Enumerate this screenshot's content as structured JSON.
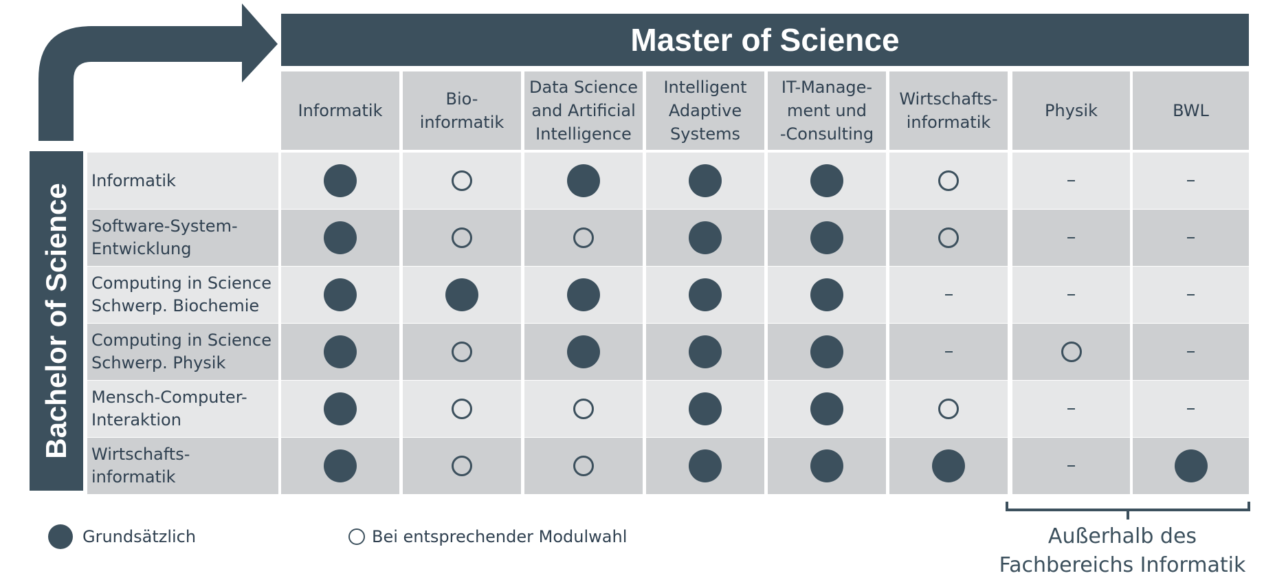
{
  "master_title": "Master of Science",
  "bachelor_title": "Bachelor of Science",
  "columns": [
    "Informatik",
    "Bio-\ninformatik",
    "Data Science\nand Artificial\nIntelligence",
    "Intelligent\nAdaptive\nSystems",
    "IT-Manage-\nment und\n-Consulting",
    "Wirtschafts-\ninformatik",
    "Physik",
    "BWL"
  ],
  "rows": [
    {
      "label": "Informatik",
      "values": [
        "full",
        "open",
        "full",
        "full",
        "full",
        "open",
        "dash",
        "dash"
      ]
    },
    {
      "label": "Software-System-\nEntwicklung",
      "values": [
        "full",
        "open",
        "open",
        "full",
        "full",
        "open",
        "dash",
        "dash"
      ]
    },
    {
      "label": "Computing in Science\nSchwerp. Biochemie",
      "values": [
        "full",
        "full",
        "full",
        "full",
        "full",
        "dash",
        "dash",
        "dash"
      ]
    },
    {
      "label": "Computing in Science\nSchwerp. Physik",
      "values": [
        "full",
        "open",
        "full",
        "full",
        "full",
        "dash",
        "open",
        "dash"
      ]
    },
    {
      "label": "Mensch-Computer-\nInteraktion",
      "values": [
        "full",
        "open",
        "open",
        "full",
        "full",
        "open",
        "dash",
        "dash"
      ]
    },
    {
      "label": "Wirtschafts-\ninformatik",
      "values": [
        "full",
        "open",
        "open",
        "full",
        "full",
        "full",
        "dash",
        "full"
      ]
    }
  ],
  "legend": {
    "full": "Grundsätzlich",
    "open": "Bei entsprechender Modulwahl"
  },
  "outside_label": "Außerhalb des\nFachbereichs Informatik",
  "colors": {
    "dark": "#3c505d",
    "cell_light": "#e6e7e8",
    "cell_dark": "#cdcfd1"
  }
}
